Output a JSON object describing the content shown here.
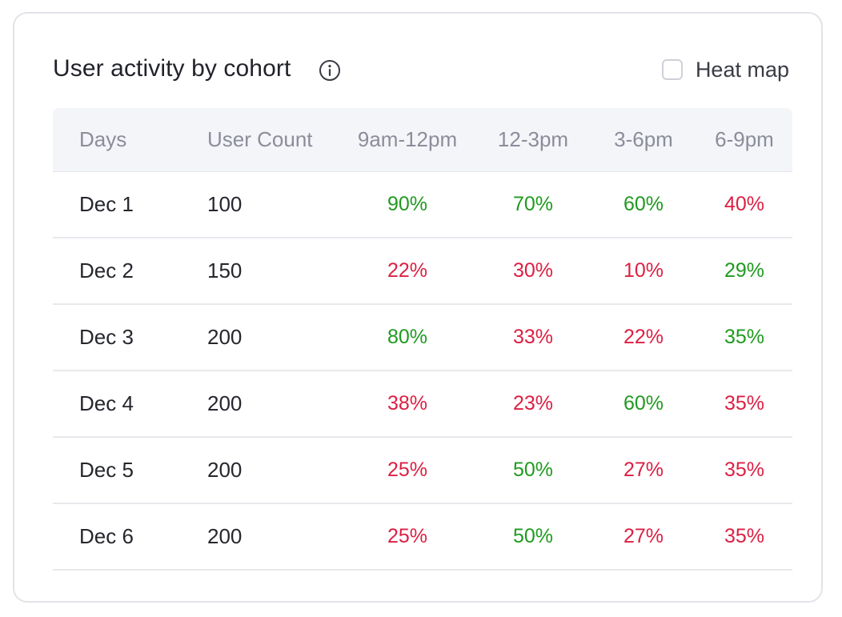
{
  "card": {
    "title": "User activity by cohort",
    "info_icon": "info-icon",
    "heatmap": {
      "label": "Heat map",
      "checked": false
    }
  },
  "colors": {
    "high": "#1f9a1f",
    "low": "#dc1f43",
    "header_bg": "#f4f5f9"
  },
  "table": {
    "columns": [
      "Days",
      "User Count",
      "9am-12pm",
      "12-3pm",
      "3-6pm",
      "6-9pm"
    ],
    "rows": [
      {
        "day": "Dec 1",
        "count": "100",
        "values": [
          "90%",
          "70%",
          "60%",
          "40%"
        ],
        "status": [
          "high",
          "high",
          "high",
          "low"
        ]
      },
      {
        "day": "Dec 2",
        "count": "150",
        "values": [
          "22%",
          "30%",
          "10%",
          "29%"
        ],
        "status": [
          "low",
          "low",
          "low",
          "high"
        ]
      },
      {
        "day": "Dec 3",
        "count": "200",
        "values": [
          "80%",
          "33%",
          "22%",
          "35%"
        ],
        "status": [
          "high",
          "low",
          "low",
          "high"
        ]
      },
      {
        "day": "Dec 4",
        "count": "200",
        "values": [
          "38%",
          "23%",
          "60%",
          "35%"
        ],
        "status": [
          "low",
          "low",
          "high",
          "low"
        ]
      },
      {
        "day": "Dec 5",
        "count": "200",
        "values": [
          "25%",
          "50%",
          "27%",
          "35%"
        ],
        "status": [
          "low",
          "high",
          "low",
          "low"
        ]
      },
      {
        "day": "Dec 6",
        "count": "200",
        "values": [
          "25%",
          "50%",
          "27%",
          "35%"
        ],
        "status": [
          "low",
          "high",
          "low",
          "low"
        ]
      }
    ]
  }
}
